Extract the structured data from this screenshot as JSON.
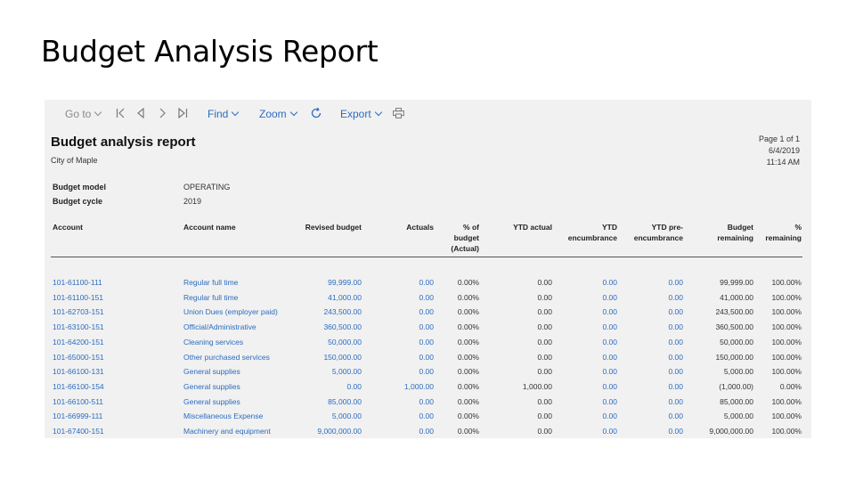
{
  "slide": {
    "title": "Budget Analysis Report"
  },
  "toolbar": {
    "goto": "Go to",
    "find": "Find",
    "zoom": "Zoom",
    "export": "Export"
  },
  "report": {
    "title": "Budget analysis report",
    "org": "City of Maple",
    "page": "Page 1 of 1",
    "date": "6/4/2019",
    "time": "11:14 AM",
    "budget_model_label": "Budget model",
    "budget_model_value": "OPERATING",
    "budget_cycle_label": "Budget cycle",
    "budget_cycle_value": "2019"
  },
  "table": {
    "headers": [
      "Account",
      "Account name",
      "Revised budget",
      "Actuals",
      "% of budget (Actual)",
      "YTD actual",
      "YTD encumbrance",
      "YTD pre-encumbrance",
      "Budget remaining",
      "% remaining"
    ],
    "rows": [
      [
        "101-61100-111",
        "Regular full time",
        "99,999.00",
        "0.00",
        "0.00%",
        "0.00",
        "0.00",
        "0.00",
        "99,999.00",
        "100.00%"
      ],
      [
        "101-61100-151",
        "Regular full time",
        "41,000.00",
        "0.00",
        "0.00%",
        "0.00",
        "0.00",
        "0.00",
        "41,000.00",
        "100.00%"
      ],
      [
        "101-62703-151",
        "Union Dues (employer paid)",
        "243,500.00",
        "0.00",
        "0.00%",
        "0.00",
        "0.00",
        "0.00",
        "243,500.00",
        "100.00%"
      ],
      [
        "101-63100-151",
        "Official/Administrative",
        "360,500.00",
        "0.00",
        "0.00%",
        "0.00",
        "0.00",
        "0.00",
        "360,500.00",
        "100.00%"
      ],
      [
        "101-64200-151",
        "Cleaning services",
        "50,000.00",
        "0.00",
        "0.00%",
        "0.00",
        "0.00",
        "0.00",
        "50,000.00",
        "100.00%"
      ],
      [
        "101-65000-151",
        "Other purchased services",
        "150,000.00",
        "0.00",
        "0.00%",
        "0.00",
        "0.00",
        "0.00",
        "150,000.00",
        "100.00%"
      ],
      [
        "101-66100-131",
        "General supplies",
        "5,000.00",
        "0.00",
        "0.00%",
        "0.00",
        "0.00",
        "0.00",
        "5,000.00",
        "100.00%"
      ],
      [
        "101-66100-154",
        "General supplies",
        "0.00",
        "1,000.00",
        "0.00%",
        "1,000.00",
        "0.00",
        "0.00",
        "(1,000.00)",
        "0.00%"
      ],
      [
        "101-66100-511",
        "General supplies",
        "85,000.00",
        "0.00",
        "0.00%",
        "0.00",
        "0.00",
        "0.00",
        "85,000.00",
        "100.00%"
      ],
      [
        "101-66999-111",
        "Miscellaneous Expense",
        "5,000.00",
        "0.00",
        "0.00%",
        "0.00",
        "0.00",
        "0.00",
        "5,000.00",
        "100.00%"
      ],
      [
        "101-67400-151",
        "Machinery and equipment",
        "9,000,000.00",
        "0.00",
        "0.00%",
        "0.00",
        "0.00",
        "0.00",
        "9,000,000.00",
        "100.00%"
      ]
    ]
  }
}
